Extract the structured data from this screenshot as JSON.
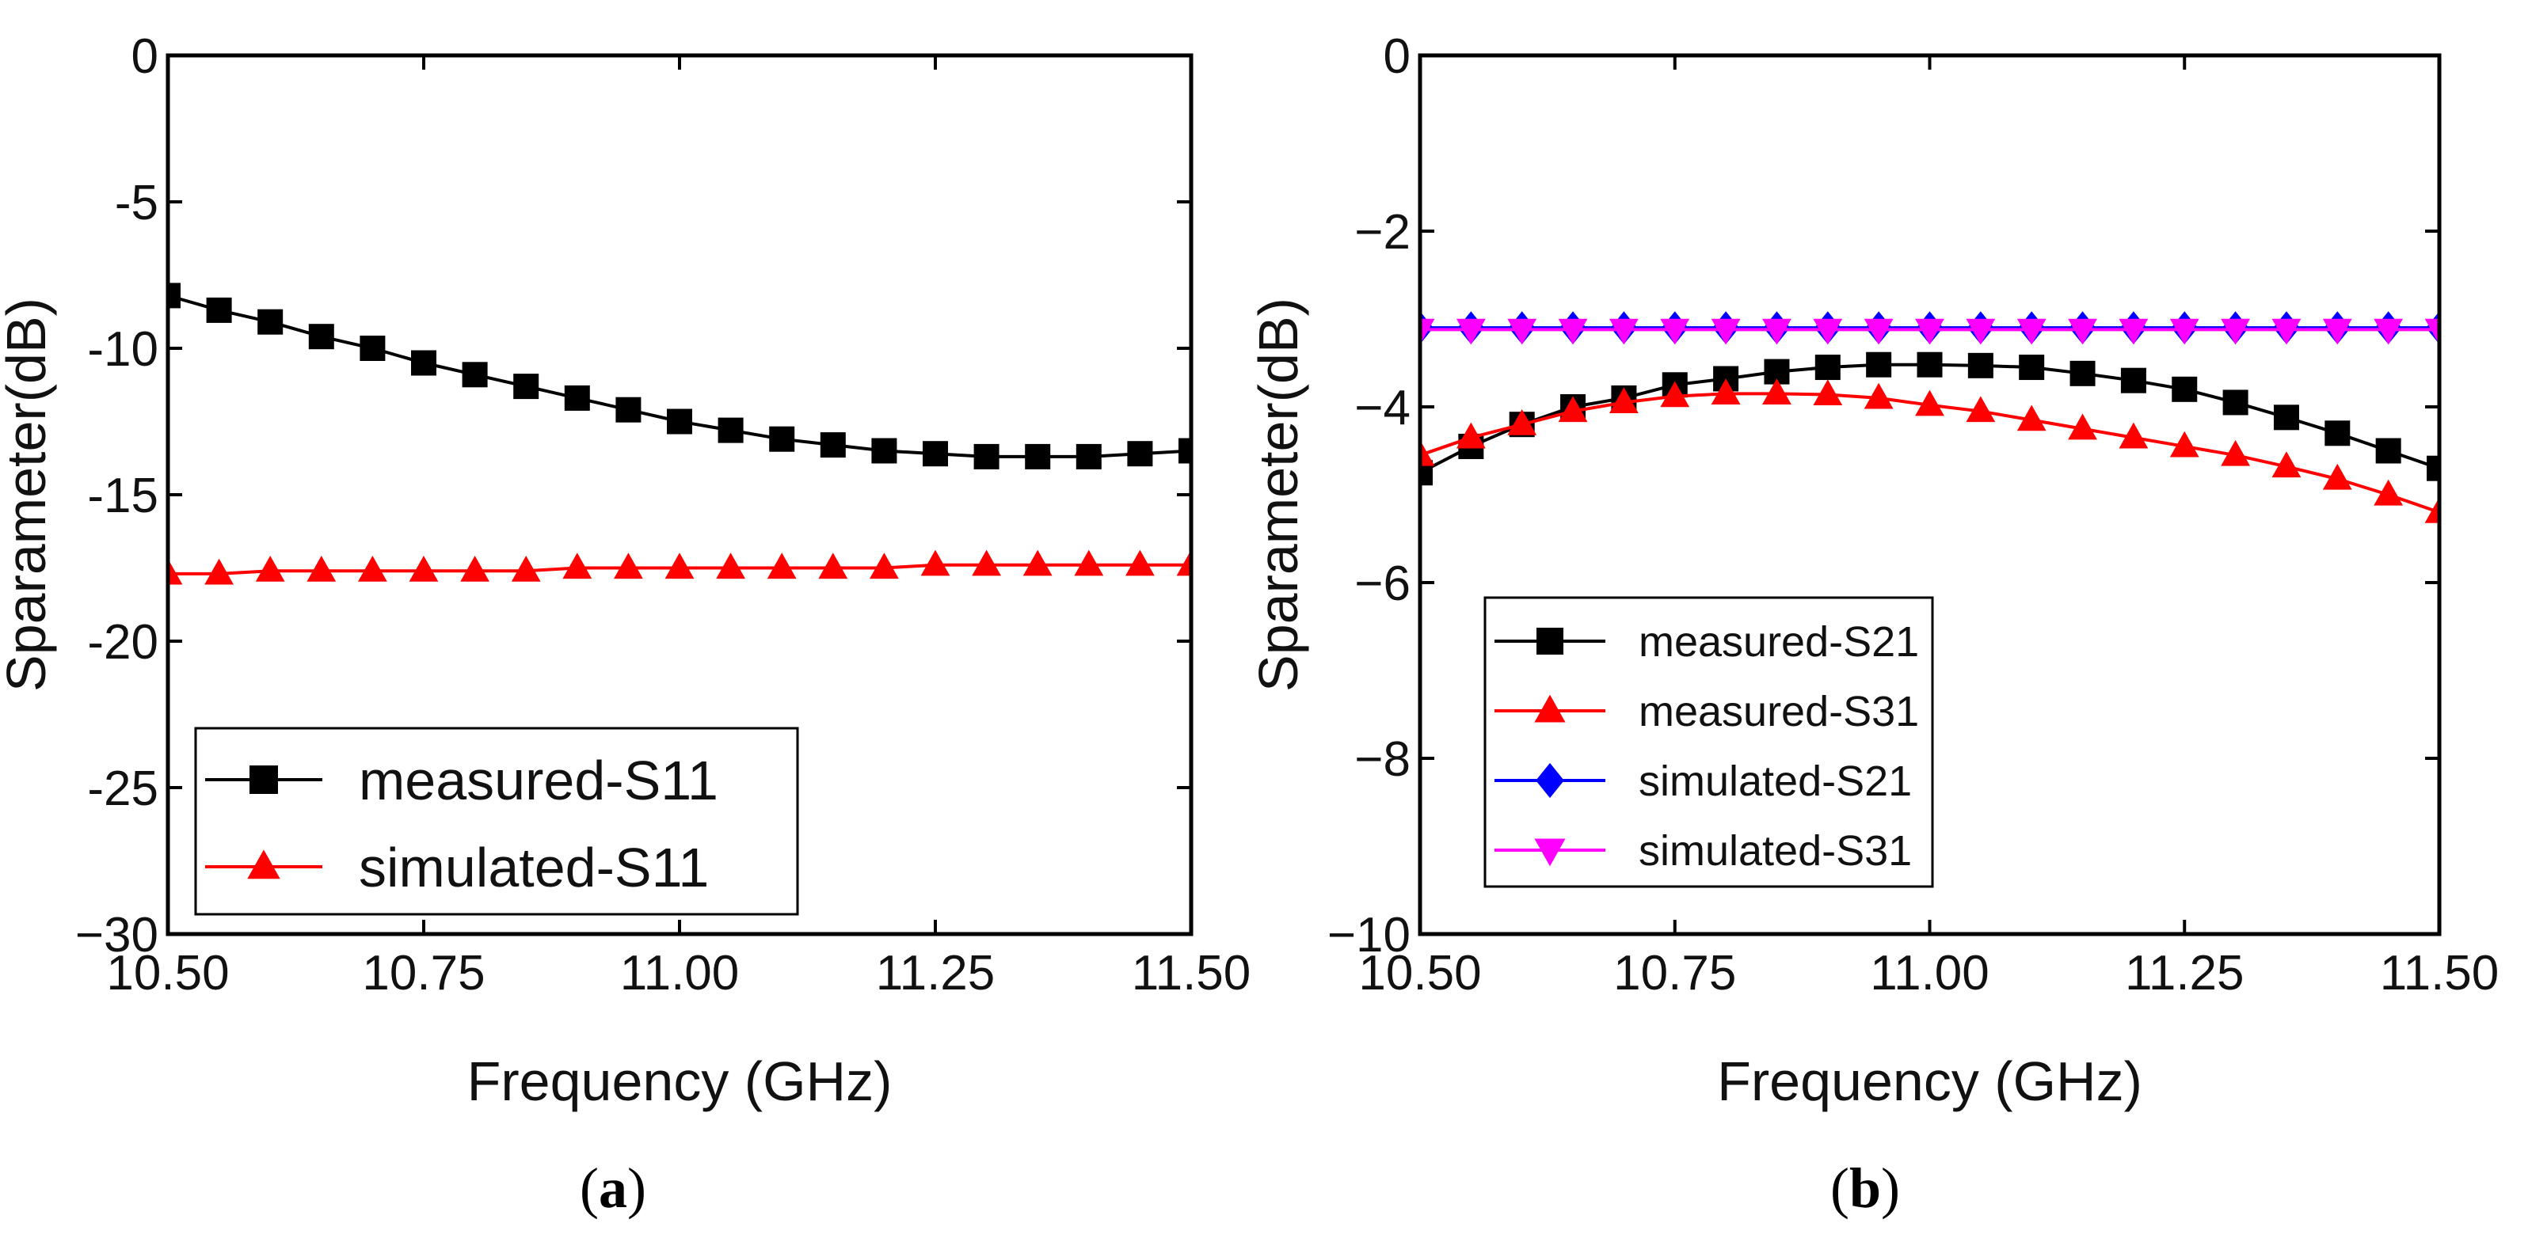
{
  "chart_data": [
    {
      "type": "line",
      "panel_label": {
        "open": "(",
        "letter": "a",
        "close": ")"
      },
      "xlabel": "Frequency (GHz)",
      "ylabel": "Sparameter(dB)",
      "xlim": [
        10.5,
        11.5
      ],
      "ylim": [
        -30,
        0
      ],
      "xticks": [
        10.5,
        10.75,
        11.0,
        11.25,
        11.5
      ],
      "xtick_labels": [
        "10.50",
        "10.75",
        "11.00",
        "11.25",
        "11.50"
      ],
      "yticks": [
        0,
        -5,
        -10,
        -15,
        -20,
        -25,
        -30
      ],
      "ytick_labels": [
        "0",
        "-5",
        "-10",
        "-15",
        "-20",
        "-25",
        "−30"
      ],
      "grid": false,
      "legend_position": "bottom-left",
      "x": [
        10.5,
        10.55,
        10.6,
        10.65,
        10.7,
        10.75,
        10.8,
        10.85,
        10.9,
        10.95,
        11.0,
        11.05,
        11.1,
        11.15,
        11.2,
        11.25,
        11.3,
        11.35,
        11.4,
        11.45,
        11.5
      ],
      "series": [
        {
          "name": "measured-S11",
          "color": "#000000",
          "marker": "square",
          "values": [
            -8.2,
            -8.7,
            -9.1,
            -9.6,
            -10.0,
            -10.5,
            -10.9,
            -11.3,
            -11.7,
            -12.1,
            -12.5,
            -12.8,
            -13.1,
            -13.3,
            -13.5,
            -13.6,
            -13.7,
            -13.7,
            -13.7,
            -13.6,
            -13.5
          ]
        },
        {
          "name": "simulated-S11",
          "color": "#ff0000",
          "marker": "triangle-up",
          "values": [
            -17.7,
            -17.7,
            -17.6,
            -17.6,
            -17.6,
            -17.6,
            -17.6,
            -17.6,
            -17.5,
            -17.5,
            -17.5,
            -17.5,
            -17.5,
            -17.5,
            -17.5,
            -17.4,
            -17.4,
            -17.4,
            -17.4,
            -17.4,
            -17.4
          ]
        }
      ]
    },
    {
      "type": "line",
      "panel_label": {
        "open": "(",
        "letter": "b",
        "close": ")"
      },
      "xlabel": "Frequency (GHz)",
      "ylabel": "Sparameter(dB)",
      "xlim": [
        10.5,
        11.5
      ],
      "ylim": [
        -10,
        0
      ],
      "xticks": [
        10.5,
        10.75,
        11.0,
        11.25,
        11.5
      ],
      "xtick_labels": [
        "10.50",
        "10.75",
        "11.00",
        "11.25",
        "11.50"
      ],
      "yticks": [
        0,
        -2,
        -4,
        -6,
        -8,
        -10
      ],
      "ytick_labels": [
        "0",
        "−2",
        "−4",
        "−6",
        "−8",
        "−10"
      ],
      "grid": false,
      "legend_position": "bottom-left",
      "x": [
        10.5,
        10.55,
        10.6,
        10.65,
        10.7,
        10.75,
        10.8,
        10.85,
        10.9,
        10.95,
        11.0,
        11.05,
        11.1,
        11.15,
        11.2,
        11.25,
        11.3,
        11.35,
        11.4,
        11.45,
        11.5
      ],
      "series": [
        {
          "name": "measured-S21",
          "color": "#000000",
          "marker": "square",
          "values": [
            -4.75,
            -4.45,
            -4.2,
            -4.0,
            -3.9,
            -3.75,
            -3.68,
            -3.6,
            -3.55,
            -3.52,
            -3.52,
            -3.53,
            -3.55,
            -3.62,
            -3.7,
            -3.8,
            -3.95,
            -4.12,
            -4.3,
            -4.5,
            -4.7
          ]
        },
        {
          "name": "measured-S31",
          "color": "#ff0000",
          "marker": "triangle-up",
          "values": [
            -4.55,
            -4.35,
            -4.2,
            -4.05,
            -3.95,
            -3.88,
            -3.85,
            -3.85,
            -3.86,
            -3.9,
            -3.98,
            -4.05,
            -4.15,
            -4.25,
            -4.35,
            -4.45,
            -4.55,
            -4.68,
            -4.82,
            -5.0,
            -5.2
          ]
        },
        {
          "name": "simulated-S21",
          "color": "#0000ff",
          "marker": "diamond",
          "values": [
            -3.1,
            -3.1,
            -3.1,
            -3.1,
            -3.1,
            -3.1,
            -3.1,
            -3.1,
            -3.1,
            -3.1,
            -3.1,
            -3.1,
            -3.1,
            -3.1,
            -3.1,
            -3.1,
            -3.1,
            -3.1,
            -3.1,
            -3.1,
            -3.1
          ]
        },
        {
          "name": "simulated-S31",
          "color": "#ff00ff",
          "marker": "triangle-down",
          "values": [
            -3.12,
            -3.12,
            -3.12,
            -3.12,
            -3.12,
            -3.12,
            -3.12,
            -3.12,
            -3.12,
            -3.12,
            -3.12,
            -3.12,
            -3.12,
            -3.12,
            -3.12,
            -3.12,
            -3.12,
            -3.12,
            -3.12,
            -3.12,
            -3.12
          ]
        }
      ]
    }
  ]
}
